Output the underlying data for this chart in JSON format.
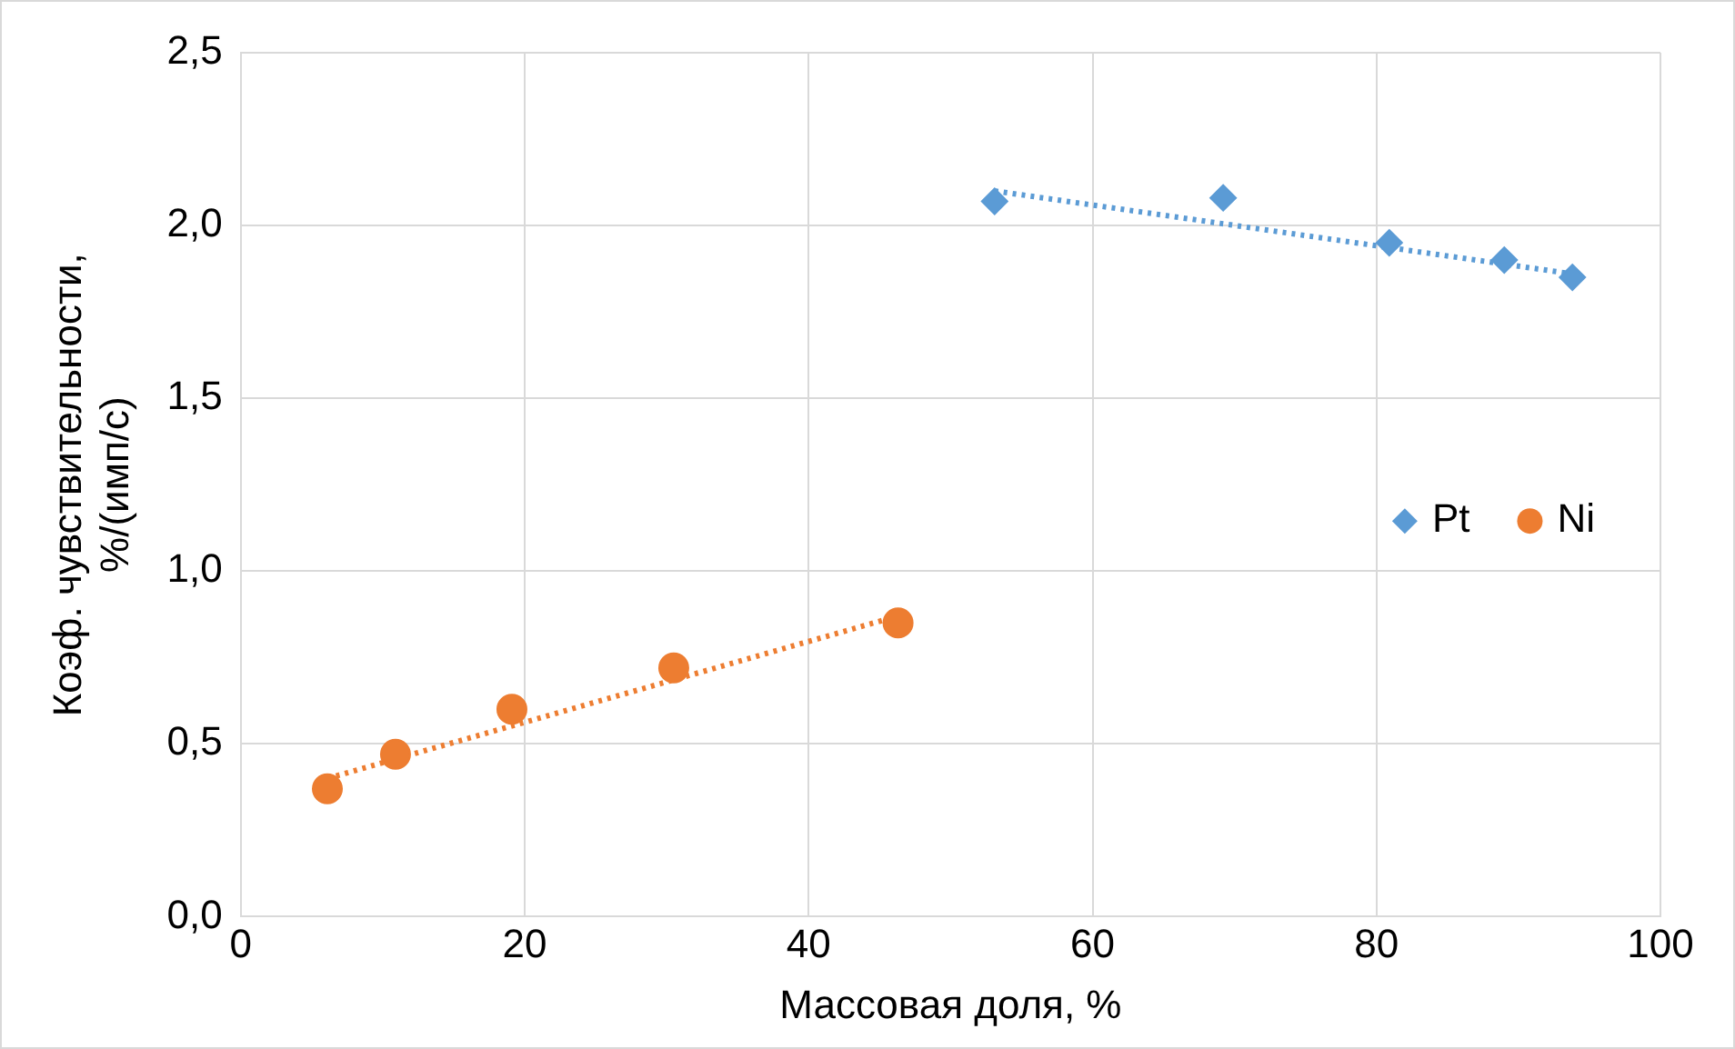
{
  "chart_data": {
    "type": "scatter",
    "xlabel": "Массовая доля, %",
    "ylabel": "Коэф. чувствительности,\n%/(имп/с)",
    "xlim": [
      0,
      100
    ],
    "xticks": [
      0,
      20,
      40,
      60,
      80,
      100
    ],
    "ylim": [
      0,
      2.5
    ],
    "yticks": [
      {
        "value": 0,
        "label": "0,0"
      },
      {
        "value": 0.5,
        "label": "0,5"
      },
      {
        "value": 1,
        "label": "1,0"
      },
      {
        "value": 1.5,
        "label": "1,5"
      },
      {
        "value": 2,
        "label": "2,0"
      },
      {
        "value": 2.5,
        "label": "2,5"
      }
    ],
    "grid": true,
    "legend": "right",
    "series": [
      {
        "name": "Pt",
        "color": "#5b9bd5",
        "marker": "diamond",
        "x": [
          53.1,
          69.2,
          80.9,
          89.0,
          93.8
        ],
        "values": [
          2.07,
          2.08,
          1.95,
          1.9,
          1.85
        ]
      },
      {
        "name": "Ni",
        "color": "#ed7d31",
        "marker": "circle",
        "x": [
          6.1,
          10.9,
          19.1,
          30.5,
          46.3
        ],
        "values": [
          0.37,
          0.47,
          0.6,
          0.72,
          0.85
        ]
      },
      {
        "type": "line",
        "color": "#5b9bd5",
        "line_style": "dotted",
        "marker": "none",
        "x": [
          53.1,
          93.8
        ],
        "values": [
          2.1,
          1.86
        ]
      },
      {
        "type": "line",
        "color": "#ed7d31",
        "line_style": "dotted",
        "marker": "none",
        "x": [
          6.1,
          46.3
        ],
        "values": [
          0.4,
          0.87
        ]
      }
    ]
  }
}
